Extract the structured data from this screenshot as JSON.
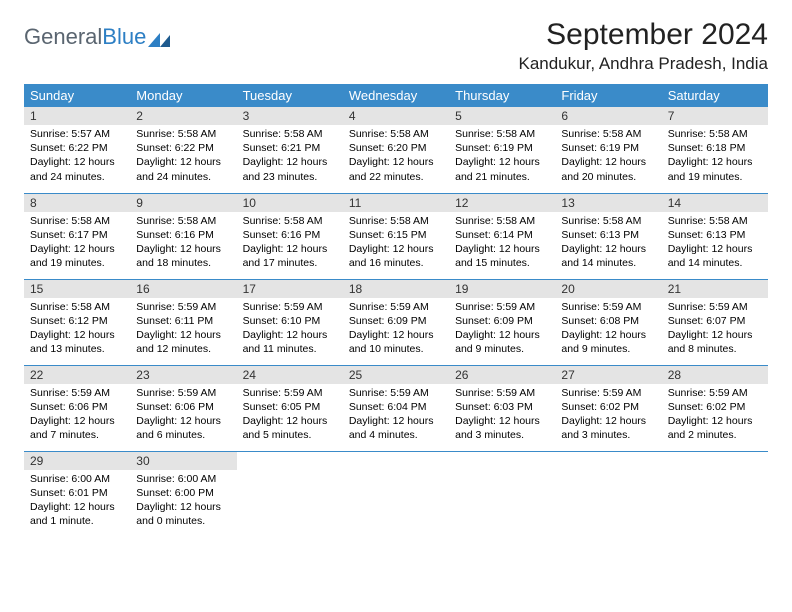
{
  "brand": {
    "part1": "General",
    "part2": "Blue"
  },
  "title": "September 2024",
  "location": "Kandukur, Andhra Pradesh, India",
  "weekday_headers": [
    "Sunday",
    "Monday",
    "Tuesday",
    "Wednesday",
    "Thursday",
    "Friday",
    "Saturday"
  ],
  "header_bg": "#3a8bc9",
  "header_fg": "#ffffff",
  "daynum_bg": "#e4e4e4",
  "rule_color": "#3a8bc9",
  "weeks": [
    [
      {
        "n": "1",
        "sunrise": "Sunrise: 5:57 AM",
        "sunset": "Sunset: 6:22 PM",
        "day1": "Daylight: 12 hours",
        "day2": "and 24 minutes."
      },
      {
        "n": "2",
        "sunrise": "Sunrise: 5:58 AM",
        "sunset": "Sunset: 6:22 PM",
        "day1": "Daylight: 12 hours",
        "day2": "and 24 minutes."
      },
      {
        "n": "3",
        "sunrise": "Sunrise: 5:58 AM",
        "sunset": "Sunset: 6:21 PM",
        "day1": "Daylight: 12 hours",
        "day2": "and 23 minutes."
      },
      {
        "n": "4",
        "sunrise": "Sunrise: 5:58 AM",
        "sunset": "Sunset: 6:20 PM",
        "day1": "Daylight: 12 hours",
        "day2": "and 22 minutes."
      },
      {
        "n": "5",
        "sunrise": "Sunrise: 5:58 AM",
        "sunset": "Sunset: 6:19 PM",
        "day1": "Daylight: 12 hours",
        "day2": "and 21 minutes."
      },
      {
        "n": "6",
        "sunrise": "Sunrise: 5:58 AM",
        "sunset": "Sunset: 6:19 PM",
        "day1": "Daylight: 12 hours",
        "day2": "and 20 minutes."
      },
      {
        "n": "7",
        "sunrise": "Sunrise: 5:58 AM",
        "sunset": "Sunset: 6:18 PM",
        "day1": "Daylight: 12 hours",
        "day2": "and 19 minutes."
      }
    ],
    [
      {
        "n": "8",
        "sunrise": "Sunrise: 5:58 AM",
        "sunset": "Sunset: 6:17 PM",
        "day1": "Daylight: 12 hours",
        "day2": "and 19 minutes."
      },
      {
        "n": "9",
        "sunrise": "Sunrise: 5:58 AM",
        "sunset": "Sunset: 6:16 PM",
        "day1": "Daylight: 12 hours",
        "day2": "and 18 minutes."
      },
      {
        "n": "10",
        "sunrise": "Sunrise: 5:58 AM",
        "sunset": "Sunset: 6:16 PM",
        "day1": "Daylight: 12 hours",
        "day2": "and 17 minutes."
      },
      {
        "n": "11",
        "sunrise": "Sunrise: 5:58 AM",
        "sunset": "Sunset: 6:15 PM",
        "day1": "Daylight: 12 hours",
        "day2": "and 16 minutes."
      },
      {
        "n": "12",
        "sunrise": "Sunrise: 5:58 AM",
        "sunset": "Sunset: 6:14 PM",
        "day1": "Daylight: 12 hours",
        "day2": "and 15 minutes."
      },
      {
        "n": "13",
        "sunrise": "Sunrise: 5:58 AM",
        "sunset": "Sunset: 6:13 PM",
        "day1": "Daylight: 12 hours",
        "day2": "and 14 minutes."
      },
      {
        "n": "14",
        "sunrise": "Sunrise: 5:58 AM",
        "sunset": "Sunset: 6:13 PM",
        "day1": "Daylight: 12 hours",
        "day2": "and 14 minutes."
      }
    ],
    [
      {
        "n": "15",
        "sunrise": "Sunrise: 5:58 AM",
        "sunset": "Sunset: 6:12 PM",
        "day1": "Daylight: 12 hours",
        "day2": "and 13 minutes."
      },
      {
        "n": "16",
        "sunrise": "Sunrise: 5:59 AM",
        "sunset": "Sunset: 6:11 PM",
        "day1": "Daylight: 12 hours",
        "day2": "and 12 minutes."
      },
      {
        "n": "17",
        "sunrise": "Sunrise: 5:59 AM",
        "sunset": "Sunset: 6:10 PM",
        "day1": "Daylight: 12 hours",
        "day2": "and 11 minutes."
      },
      {
        "n": "18",
        "sunrise": "Sunrise: 5:59 AM",
        "sunset": "Sunset: 6:09 PM",
        "day1": "Daylight: 12 hours",
        "day2": "and 10 minutes."
      },
      {
        "n": "19",
        "sunrise": "Sunrise: 5:59 AM",
        "sunset": "Sunset: 6:09 PM",
        "day1": "Daylight: 12 hours",
        "day2": "and 9 minutes."
      },
      {
        "n": "20",
        "sunrise": "Sunrise: 5:59 AM",
        "sunset": "Sunset: 6:08 PM",
        "day1": "Daylight: 12 hours",
        "day2": "and 9 minutes."
      },
      {
        "n": "21",
        "sunrise": "Sunrise: 5:59 AM",
        "sunset": "Sunset: 6:07 PM",
        "day1": "Daylight: 12 hours",
        "day2": "and 8 minutes."
      }
    ],
    [
      {
        "n": "22",
        "sunrise": "Sunrise: 5:59 AM",
        "sunset": "Sunset: 6:06 PM",
        "day1": "Daylight: 12 hours",
        "day2": "and 7 minutes."
      },
      {
        "n": "23",
        "sunrise": "Sunrise: 5:59 AM",
        "sunset": "Sunset: 6:06 PM",
        "day1": "Daylight: 12 hours",
        "day2": "and 6 minutes."
      },
      {
        "n": "24",
        "sunrise": "Sunrise: 5:59 AM",
        "sunset": "Sunset: 6:05 PM",
        "day1": "Daylight: 12 hours",
        "day2": "and 5 minutes."
      },
      {
        "n": "25",
        "sunrise": "Sunrise: 5:59 AM",
        "sunset": "Sunset: 6:04 PM",
        "day1": "Daylight: 12 hours",
        "day2": "and 4 minutes."
      },
      {
        "n": "26",
        "sunrise": "Sunrise: 5:59 AM",
        "sunset": "Sunset: 6:03 PM",
        "day1": "Daylight: 12 hours",
        "day2": "and 3 minutes."
      },
      {
        "n": "27",
        "sunrise": "Sunrise: 5:59 AM",
        "sunset": "Sunset: 6:02 PM",
        "day1": "Daylight: 12 hours",
        "day2": "and 3 minutes."
      },
      {
        "n": "28",
        "sunrise": "Sunrise: 5:59 AM",
        "sunset": "Sunset: 6:02 PM",
        "day1": "Daylight: 12 hours",
        "day2": "and 2 minutes."
      }
    ],
    [
      {
        "n": "29",
        "sunrise": "Sunrise: 6:00 AM",
        "sunset": "Sunset: 6:01 PM",
        "day1": "Daylight: 12 hours",
        "day2": "and 1 minute."
      },
      {
        "n": "30",
        "sunrise": "Sunrise: 6:00 AM",
        "sunset": "Sunset: 6:00 PM",
        "day1": "Daylight: 12 hours",
        "day2": "and 0 minutes."
      },
      null,
      null,
      null,
      null,
      null
    ]
  ]
}
